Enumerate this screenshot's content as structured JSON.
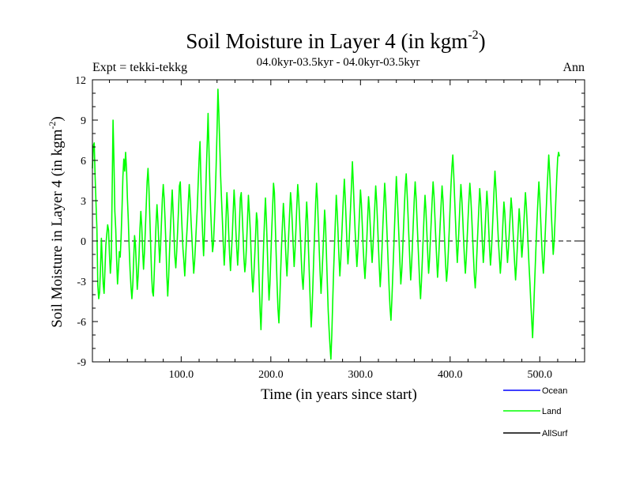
{
  "chart_data": {
    "type": "line",
    "title": "Soil Moisture in Layer 4 (in kgm",
    "title_sup": "-2",
    "title_close": ")",
    "subtitle": "04.0kyr-03.5kyr - 04.0kyr-03.5kyr",
    "expt_label": "Expt = tekki-tekkg",
    "season_label": "Ann",
    "xlabel": "Time (in years since start)",
    "ylabel": "Soil Moisture in Layer 4 (in kgm",
    "ylabel_sup": "-2",
    "ylabel_close": ")",
    "xlim": [
      1,
      550
    ],
    "ylim": [
      -9,
      12
    ],
    "x_ticks": [
      100,
      200,
      300,
      400,
      500
    ],
    "x_tick_labels": [
      "100.0",
      "200.0",
      "300.0",
      "400.0",
      "500.0"
    ],
    "y_ticks": [
      -9,
      -6,
      -3,
      0,
      3,
      6,
      9,
      12
    ],
    "y_tick_labels": [
      "-9",
      "-6",
      "-3",
      "0",
      "3",
      "6",
      "9",
      "12"
    ],
    "zero_line": true,
    "legend": [
      {
        "name": "Ocean",
        "color": "#0000ff"
      },
      {
        "name": "Land",
        "color": "#00ff00"
      },
      {
        "name": "AllSurf",
        "color": "#000000"
      }
    ],
    "series": [
      {
        "name": "Land",
        "color": "#00ff00",
        "x_start": 1,
        "x_step": 1,
        "values": [
          5.4,
          7.1,
          7.3,
          4.8,
          2.8,
          0.9,
          -3.3,
          -4.3,
          -3.8,
          -2.0,
          0.2,
          -1.5,
          -3.2,
          -3.9,
          -2.1,
          -0.3,
          0.5,
          1.2,
          0.8,
          -1.0,
          -2.4,
          -1.3,
          3.7,
          9.0,
          6.0,
          2.2,
          0.9,
          -1.4,
          -3.2,
          -2.1,
          -0.8,
          -1.2,
          0.3,
          2.4,
          4.8,
          6.1,
          5.2,
          6.6,
          5.4,
          3.2,
          1.6,
          -0.5,
          -2.2,
          -3.4,
          -4.3,
          -3.3,
          -1.4,
          0.4,
          -0.3,
          -1.9,
          -3.6,
          -2.6,
          -1.1,
          0.9,
          2.2,
          1.1,
          -0.7,
          -2.1,
          -0.9,
          0.8,
          2.6,
          4.4,
          5.4,
          4.0,
          1.8,
          -0.4,
          -2.5,
          -3.8,
          -4.1,
          -2.3,
          -0.4,
          1.3,
          2.7,
          1.5,
          -0.1,
          -1.6,
          -0.4,
          1.4,
          3.1,
          4.2,
          3.2,
          1.6,
          -0.3,
          -2.6,
          -4.1,
          -2.7,
          -0.8,
          0.9,
          2.4,
          3.8,
          2.2,
          0.4,
          -1.2,
          -2.0,
          -0.8,
          0.7,
          2.3,
          4.1,
          4.4,
          2.5,
          0.9,
          -0.6,
          -1.5,
          -2.6,
          -1.2,
          0.2,
          1.4,
          2.9,
          4.2,
          3.1,
          1.5,
          0.2,
          -1.2,
          -2.4,
          -1.5,
          -0.2,
          1.2,
          2.5,
          4.4,
          6.1,
          7.4,
          4.6,
          2.2,
          0.4,
          -1.1,
          0.6,
          2.8,
          5.1,
          7.2,
          9.5,
          6.8,
          4.1,
          2.1,
          0.5,
          -0.8,
          -0.2,
          1.4,
          3.3,
          5.6,
          8.2,
          11.3,
          9.5,
          7.2,
          4.8,
          3.1,
          1.5,
          -0.3,
          -1.8,
          -0.5,
          1.6,
          3.6,
          2.4,
          0.6,
          -1.0,
          -2.2,
          -0.9,
          0.4,
          2.1,
          3.8,
          2.6,
          0.8,
          -0.6,
          -1.8,
          -0.4,
          1.3,
          3.2,
          3.6,
          2.1,
          0.5,
          -1.3,
          -2.3,
          -1.6,
          -0.1,
          1.6,
          3.4,
          2.2,
          0.9,
          -0.9,
          -2.7,
          -3.8,
          -2.6,
          -1.2,
          0.4,
          2.1,
          1.5,
          -0.8,
          -3.1,
          -5.2,
          -6.6,
          -4.6,
          -2.3,
          -0.2,
          1.6,
          3.2,
          1.6,
          -0.4,
          -2.6,
          -4.4,
          -3.2,
          -1.2,
          0.8,
          2.5,
          4.3,
          3.6,
          1.2,
          -1.1,
          -3.3,
          -5.1,
          -6.1,
          -4.4,
          -2.2,
          -0.3,
          1.3,
          2.8,
          1.6,
          0.2,
          -1.4,
          -2.6,
          -1.1,
          0.6,
          2.1,
          3.6,
          2.7,
          1.2,
          -0.4,
          -1.9,
          -0.7,
          0.9,
          2.6,
          4.2,
          3.3,
          1.8,
          0.3,
          -1.4,
          -2.8,
          -3.6,
          -2.2,
          -0.6,
          1.3,
          2.9,
          1.6,
          -0.6,
          -2.6,
          -4.6,
          -6.4,
          -5.1,
          -3.1,
          -1.0,
          0.9,
          2.8,
          4.3,
          3.1,
          1.2,
          -0.7,
          -2.4,
          -3.9,
          -2.6,
          -1.1,
          0.6,
          2.3,
          1.2,
          -0.9,
          -3.1,
          -5.2,
          -6.6,
          -7.8,
          -8.8,
          -7.0,
          -4.6,
          -2.3,
          -0.4,
          1.5,
          3.4,
          2.2,
          0.6,
          -1.2,
          -2.6,
          -1.4,
          0.2,
          1.8,
          3.3,
          4.6,
          3.2,
          1.5,
          -0.3,
          -1.7,
          -0.6,
          1.0,
          2.6,
          4.2,
          5.9,
          4.3,
          2.4,
          0.8,
          -0.6,
          -1.9,
          -0.8,
          0.7,
          2.2,
          3.8,
          2.8,
          1.2,
          -0.5,
          -1.8,
          -2.8,
          -1.6,
          0.0,
          1.7,
          3.3,
          2.4,
          1.0,
          -0.4,
          -1.6,
          -0.4,
          1.1,
          2.6,
          4.1,
          3.0,
          1.4,
          -0.3,
          -2.0,
          -3.4,
          -2.2,
          -0.6,
          1.2,
          2.7,
          4.3,
          3.2,
          1.6,
          -0.1,
          -1.8,
          -3.6,
          -5.0,
          -5.9,
          -4.4,
          -2.6,
          -0.8,
          1.1,
          3.0,
          4.8,
          3.4,
          1.8,
          0.1,
          -1.6,
          -3.2,
          -2.3,
          -0.8,
          0.9,
          2.6,
          4.1,
          5.0,
          3.6,
          2.0,
          0.3,
          -1.4,
          -2.9,
          -1.8,
          -0.2,
          1.5,
          3.1,
          4.4,
          3.3,
          1.7,
          0.1,
          -1.5,
          -3.1,
          -4.3,
          -3.0,
          -1.4,
          0.3,
          2.0,
          3.4,
          2.3,
          0.7,
          -0.9,
          -2.4,
          -1.4,
          0.1,
          1.6,
          3.1,
          4.4,
          3.4,
          1.8,
          0.2,
          -1.3,
          -2.7,
          -1.6,
          -0.1,
          1.4,
          2.8,
          4.1,
          3.1,
          1.5,
          -0.2,
          -1.8,
          -3.0,
          -2.2,
          -0.8,
          0.8,
          2.5,
          4.2,
          5.5,
          6.4,
          5.0,
          3.2,
          1.5,
          -0.2,
          -1.6,
          -0.4,
          1.2,
          2.8,
          4.2,
          3.2,
          1.8,
          0.2,
          -1.3,
          -2.4,
          -1.3,
          0.2,
          1.7,
          3.1,
          4.3,
          3.3,
          1.9,
          0.4,
          -1.1,
          -2.6,
          -3.5,
          -2.3,
          -0.7,
          0.9,
          2.4,
          3.9,
          3.0,
          1.4,
          -0.2,
          -1.6,
          -0.6,
          0.9,
          2.3,
          3.7,
          2.6,
          1.0,
          -0.6,
          -1.8,
          -0.8,
          0.6,
          2.2,
          3.8,
          5.2,
          4.0,
          2.6,
          1.2,
          -0.2,
          -1.3,
          -2.4,
          -1.4,
          0.0,
          1.5,
          2.9,
          2.1,
          0.7,
          -0.5,
          -1.6,
          -0.6,
          0.6,
          1.9,
          3.2,
          2.4,
          1.0,
          -0.4,
          -1.7,
          -2.9,
          -1.8,
          -0.4,
          1.0,
          2.4,
          1.4,
          0.1,
          -1.2,
          -0.3,
          1.0,
          2.3,
          3.6,
          2.6,
          1.2,
          -0.3,
          -1.8,
          -3.1,
          -4.6,
          -5.9,
          -7.2,
          -5.5,
          -3.6,
          -1.8,
          0.0,
          1.6,
          3.1,
          4.4,
          3.2,
          1.6,
          0.0,
          -1.4,
          -2.4,
          -1.2,
          0.4,
          2.0,
          3.6,
          5.0,
          6.4,
          5.2,
          3.6,
          1.9,
          0.4,
          -1.0,
          -0.1,
          1.5,
          3.2,
          4.8,
          6.2,
          6.6,
          6.3
        ]
      }
    ]
  }
}
